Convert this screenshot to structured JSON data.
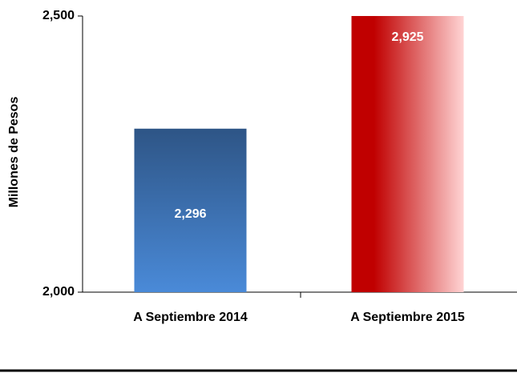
{
  "chart_data": {
    "type": "bar",
    "y_label": "Millones de Pesos",
    "categories": [
      "A Septiembre 2014",
      "A Septiembre 2015"
    ],
    "values": [
      2296,
      2925
    ],
    "value_labels": [
      "2,296",
      "2,925"
    ],
    "colors": [
      "#2e5586",
      "#c00000"
    ],
    "ylim": [
      2000,
      2500
    ],
    "yticks": [
      {
        "value": 2000,
        "label": "2,000"
      },
      {
        "value": 2500,
        "label": "2,500"
      }
    ]
  }
}
